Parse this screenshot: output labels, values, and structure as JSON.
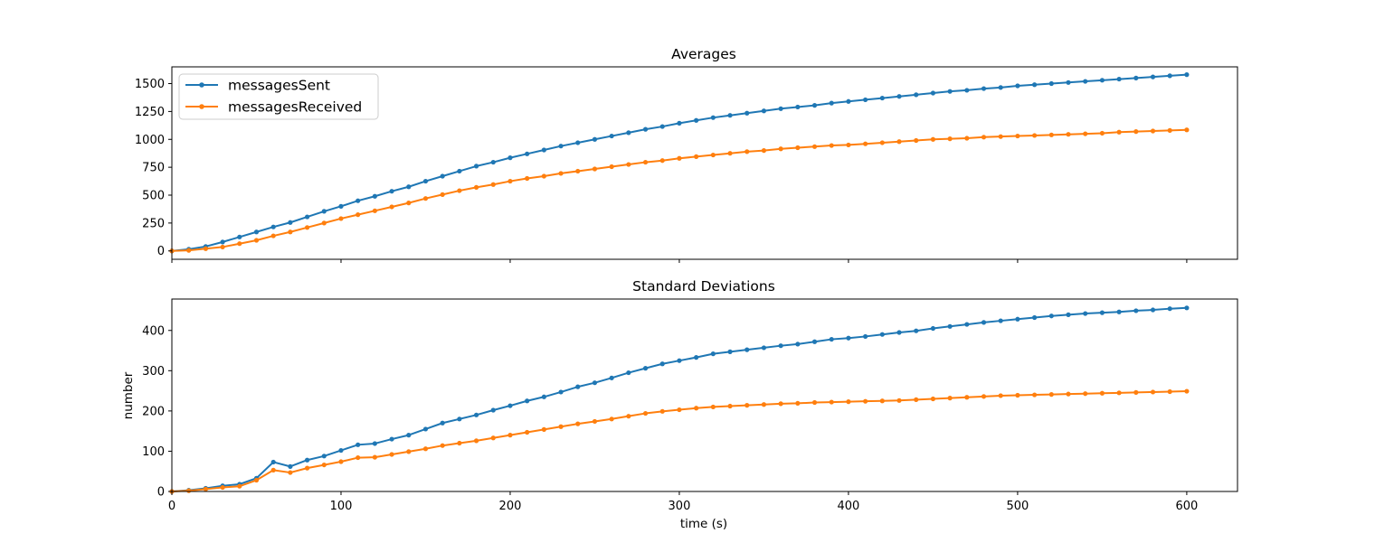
{
  "chart_data": [
    {
      "type": "line",
      "title": "Averages",
      "xlabel": "",
      "ylabel": "",
      "xlim": [
        0,
        630
      ],
      "ylim": [
        -75,
        1650
      ],
      "x_ticks": [
        0,
        100,
        200,
        300,
        400,
        500,
        600
      ],
      "show_x_tick_labels": false,
      "y_ticks": [
        0,
        250,
        500,
        750,
        1000,
        1250,
        1500
      ],
      "y_tick_labels": [
        "0",
        "250",
        "500",
        "750",
        "1000",
        "1250",
        "1500"
      ],
      "grid": false,
      "legend": "top-left",
      "x": [
        0,
        10,
        20,
        30,
        40,
        50,
        60,
        70,
        80,
        90,
        100,
        110,
        120,
        130,
        140,
        150,
        160,
        170,
        180,
        190,
        200,
        210,
        220,
        230,
        240,
        250,
        260,
        270,
        280,
        290,
        300,
        310,
        320,
        330,
        340,
        350,
        360,
        370,
        380,
        390,
        400,
        410,
        420,
        430,
        440,
        450,
        460,
        470,
        480,
        490,
        500,
        510,
        520,
        530,
        540,
        550,
        560,
        570,
        580,
        590,
        600
      ],
      "series": [
        {
          "name": "messagesSent",
          "color": "#1f77b4",
          "values": [
            0,
            15,
            40,
            80,
            125,
            170,
            215,
            255,
            305,
            355,
            400,
            450,
            490,
            535,
            575,
            625,
            670,
            715,
            760,
            795,
            835,
            870,
            905,
            940,
            970,
            1000,
            1030,
            1060,
            1090,
            1115,
            1145,
            1170,
            1195,
            1215,
            1235,
            1255,
            1275,
            1290,
            1305,
            1325,
            1340,
            1355,
            1370,
            1385,
            1400,
            1415,
            1430,
            1440,
            1455,
            1465,
            1480,
            1490,
            1500,
            1510,
            1520,
            1530,
            1540,
            1550,
            1560,
            1570,
            1580
          ]
        },
        {
          "name": "messagesReceived",
          "color": "#ff7f0e",
          "values": [
            0,
            5,
            20,
            35,
            65,
            95,
            135,
            170,
            210,
            250,
            290,
            325,
            360,
            395,
            430,
            470,
            505,
            540,
            570,
            595,
            625,
            650,
            670,
            695,
            715,
            735,
            755,
            775,
            795,
            810,
            830,
            845,
            860,
            875,
            890,
            900,
            915,
            925,
            935,
            945,
            950,
            960,
            970,
            980,
            990,
            1000,
            1005,
            1010,
            1020,
            1025,
            1030,
            1035,
            1040,
            1045,
            1050,
            1055,
            1065,
            1070,
            1075,
            1080,
            1085
          ]
        }
      ]
    },
    {
      "type": "line",
      "title": "Standard Deviations",
      "xlabel": "time (s)",
      "ylabel": "number",
      "xlim": [
        0,
        630
      ],
      "ylim": [
        0,
        478
      ],
      "x_ticks": [
        0,
        100,
        200,
        300,
        400,
        500,
        600
      ],
      "x_tick_labels": [
        "0",
        "100",
        "200",
        "300",
        "400",
        "500",
        "600"
      ],
      "y_ticks": [
        0,
        100,
        200,
        300,
        400
      ],
      "y_tick_labels": [
        "0",
        "100",
        "200",
        "300",
        "400"
      ],
      "grid": false,
      "x": [
        0,
        10,
        20,
        30,
        40,
        50,
        60,
        70,
        80,
        90,
        100,
        110,
        120,
        130,
        140,
        150,
        160,
        170,
        180,
        190,
        200,
        210,
        220,
        230,
        240,
        250,
        260,
        270,
        280,
        290,
        300,
        310,
        320,
        330,
        340,
        350,
        360,
        370,
        380,
        390,
        400,
        410,
        420,
        430,
        440,
        450,
        460,
        470,
        480,
        490,
        500,
        510,
        520,
        530,
        540,
        550,
        560,
        570,
        580,
        590,
        600
      ],
      "series": [
        {
          "color": "#1f77b4",
          "values": [
            0,
            3,
            8,
            14,
            18,
            33,
            73,
            62,
            78,
            88,
            102,
            116,
            119,
            130,
            140,
            155,
            170,
            180,
            190,
            202,
            213,
            225,
            235,
            247,
            260,
            270,
            282,
            295,
            306,
            317,
            325,
            333,
            342,
            347,
            352,
            357,
            362,
            366,
            372,
            378,
            381,
            385,
            390,
            395,
            399,
            405,
            410,
            415,
            420,
            424,
            428,
            432,
            436,
            439,
            442,
            444,
            446,
            449,
            451,
            454,
            456
          ]
        },
        {
          "color": "#ff7f0e",
          "values": [
            0,
            2,
            6,
            10,
            13,
            28,
            53,
            47,
            58,
            66,
            74,
            84,
            85,
            92,
            99,
            106,
            114,
            120,
            126,
            133,
            140,
            147,
            154,
            161,
            168,
            174,
            180,
            187,
            194,
            199,
            203,
            207,
            210,
            212,
            214,
            216,
            218,
            219,
            221,
            222,
            223,
            224,
            225,
            226,
            228,
            230,
            232,
            234,
            236,
            238,
            239,
            240,
            241,
            242,
            243,
            244,
            245,
            246,
            247,
            248,
            249
          ]
        }
      ]
    }
  ]
}
